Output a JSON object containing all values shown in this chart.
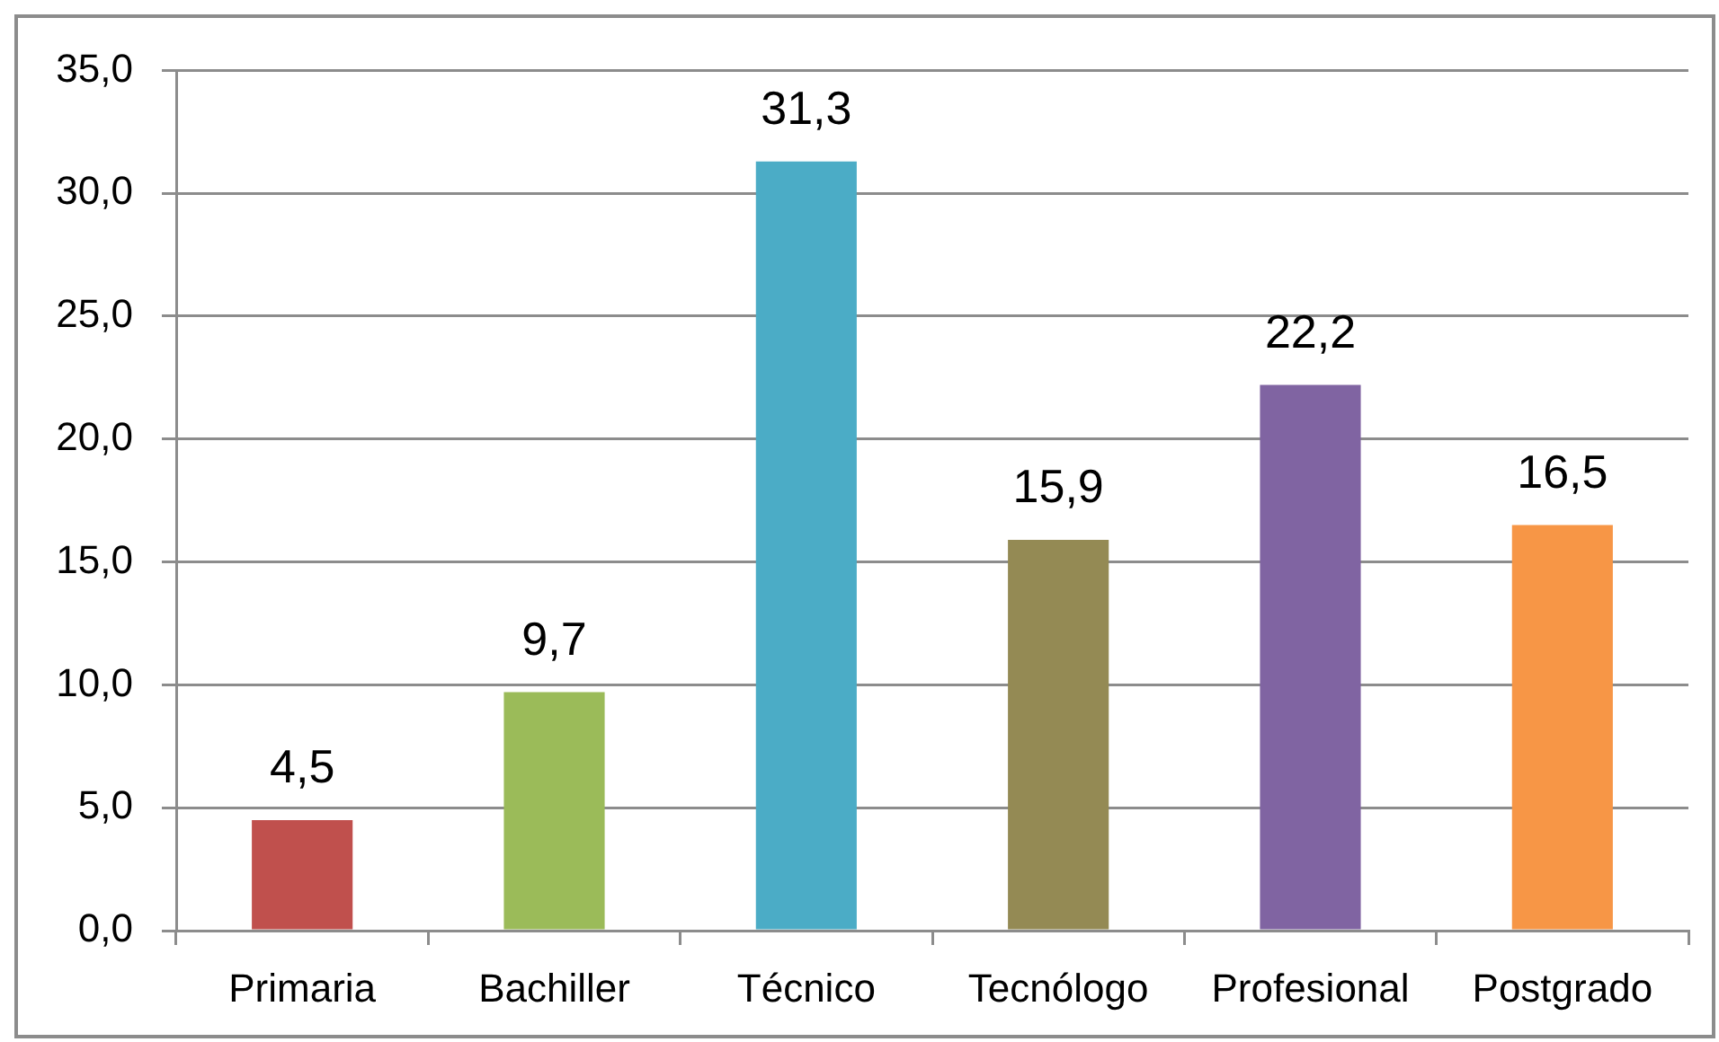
{
  "chart_data": {
    "type": "bar",
    "categories": [
      "Primaria",
      "Bachiller",
      "Técnico",
      "Tecnólogo",
      "Profesional",
      "Postgrado"
    ],
    "values": [
      4.5,
      9.7,
      31.3,
      15.9,
      22.2,
      16.5
    ],
    "colors": [
      "#c0504d",
      "#9bbb59",
      "#4bacc6",
      "#948a54",
      "#8064a2",
      "#f79646"
    ],
    "value_labels": [
      "4,5",
      "9,7",
      "31,3",
      "15,9",
      "22,2",
      "16,5"
    ],
    "ylim": [
      0,
      35
    ],
    "yticks": [
      {
        "value": 0,
        "label": "0,0"
      },
      {
        "value": 5,
        "label": "5,0"
      },
      {
        "value": 10,
        "label": "10,0"
      },
      {
        "value": 15,
        "label": "15,0"
      },
      {
        "value": 20,
        "label": "20,0"
      },
      {
        "value": 25,
        "label": "25,0"
      },
      {
        "value": 30,
        "label": "30,0"
      },
      {
        "value": 35,
        "label": "35,0"
      }
    ],
    "grid": "y"
  }
}
